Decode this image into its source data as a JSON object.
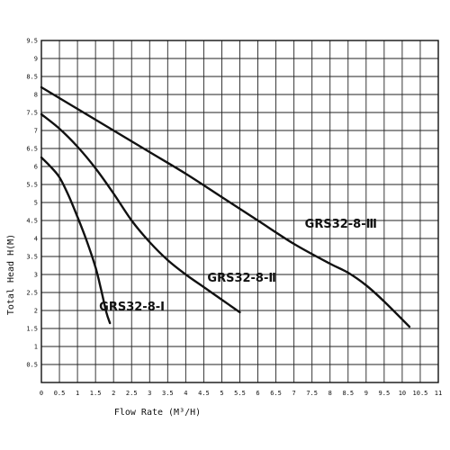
{
  "chart_data": {
    "type": "line",
    "title": "",
    "xlabel": "Flow Rate (M³/H)",
    "ylabel": "Total Head H(M)",
    "xlim": [
      0,
      11
    ],
    "ylim": [
      0,
      9.5
    ],
    "x_ticks": [
      "0",
      "0.5",
      "1",
      "1.5",
      "2",
      "2.5",
      "3",
      "3.5",
      "4",
      "4.5",
      "5",
      "5.5",
      "6",
      "6.5",
      "7",
      "7.5",
      "8",
      "8.5",
      "9",
      "9.5",
      "10",
      "10.5",
      "11"
    ],
    "y_ticks": [
      "0.5",
      "1",
      "1.5",
      "2",
      "2.5",
      "3",
      "3.5",
      "4",
      "4.5",
      "5",
      "5.5",
      "6",
      "6.5",
      "7",
      "7.5",
      "8",
      "8.5",
      "9",
      "9.5"
    ],
    "grid": true,
    "series": [
      {
        "name": "GRS32-8-Ⅰ",
        "x": [
          0,
          0.25,
          0.5,
          0.75,
          1.0,
          1.25,
          1.5,
          1.65,
          1.8,
          1.9
        ],
        "y": [
          6.25,
          6.0,
          5.7,
          5.2,
          4.6,
          3.95,
          3.2,
          2.6,
          1.95,
          1.65
        ]
      },
      {
        "name": "GRS32-8-Ⅱ",
        "x": [
          0,
          0.5,
          1.0,
          1.5,
          2.0,
          2.5,
          3.0,
          3.5,
          4.0,
          4.5,
          5.0,
          5.5
        ],
        "y": [
          7.45,
          7.05,
          6.55,
          5.95,
          5.25,
          4.5,
          3.9,
          3.4,
          3.0,
          2.65,
          2.3,
          1.95
        ]
      },
      {
        "name": "GRS32-8-Ⅲ",
        "x": [
          0,
          1,
          2,
          3,
          4,
          5,
          6,
          7,
          8,
          8.5,
          9,
          9.5,
          10.2
        ],
        "y": [
          8.2,
          7.6,
          7.0,
          6.4,
          5.8,
          5.15,
          4.5,
          3.85,
          3.3,
          3.05,
          2.7,
          2.25,
          1.55
        ]
      }
    ]
  }
}
